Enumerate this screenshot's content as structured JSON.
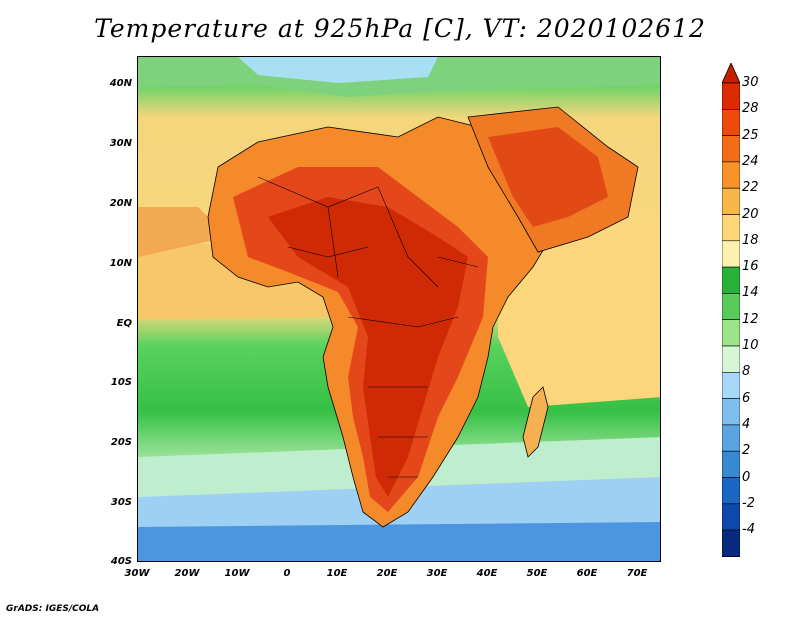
{
  "title": "Temperature at 925hPa [C], VT: 2020102612",
  "credit": "GrADS: IGES/COLA",
  "lat_labels": [
    "40N",
    "30N",
    "20N",
    "10N",
    "EQ",
    "10S",
    "20S",
    "30S",
    "40S"
  ],
  "lon_labels": [
    "30W",
    "20W",
    "10W",
    "0",
    "10E",
    "20E",
    "30E",
    "40E",
    "50E",
    "60E",
    "70E"
  ],
  "colorbar": {
    "labels": [
      "30",
      "28",
      "25",
      "24",
      "22",
      "20",
      "18",
      "16",
      "14",
      "12",
      "10",
      "8",
      "6",
      "4",
      "2",
      "0",
      "-2",
      "-4"
    ],
    "colors": [
      "#dd2a00",
      "#ef4a0a",
      "#f56c16",
      "#f79327",
      "#f9b64a",
      "#fcd878",
      "#fdf1b0",
      "#29b23a",
      "#58cc5a",
      "#9ce489",
      "#d6f7d6",
      "#a7d8f7",
      "#7fbfef",
      "#5aa4e3",
      "#3888d4",
      "#1b66c2",
      "#0e48a8",
      "#072a80",
      "#021e66"
    ],
    "arrow_top_color": "#c61e00",
    "arrow_bottom_color": "#d6d4f2"
  }
}
